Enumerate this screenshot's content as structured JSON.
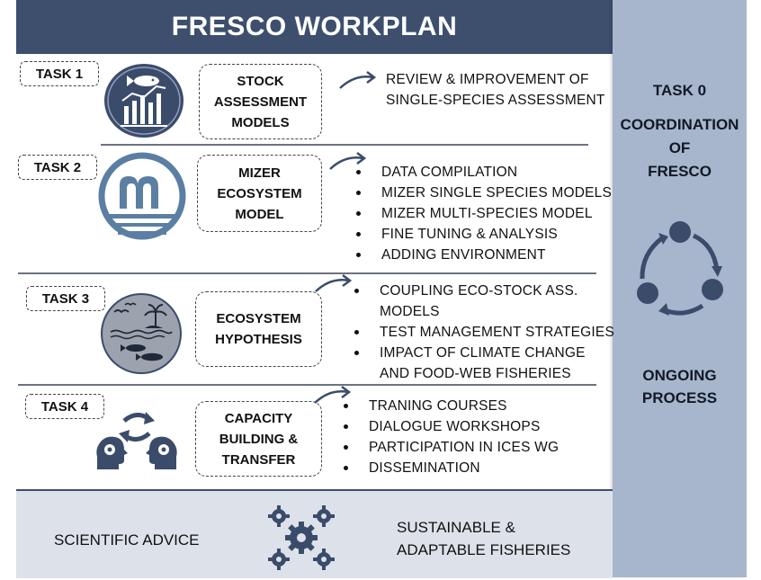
{
  "title": "FRESCO WORKPLAN",
  "task0": {
    "label": "TASK 0",
    "coordination_lines": [
      "COORDINATION",
      "OF",
      "FRESCO"
    ],
    "process_lines": [
      "ONGOING",
      "PROCESS"
    ]
  },
  "tasks": [
    {
      "tag": "TASK 1",
      "icon": "fish-bar-chart-icon",
      "box_lines": [
        "STOCK",
        "ASSESSMENT",
        "MODELS"
      ],
      "items": [
        "REVIEW & IMPROVEMENT OF",
        "SINGLE-SPECIES ASSESSMENT"
      ]
    },
    {
      "tag": "TASK 2",
      "icon": "mizer-logo-icon",
      "box_lines": [
        "MIZER",
        "ECOSYSTEM",
        "MODEL"
      ],
      "items": [
        "DATA COMPILATION",
        "MIZER SINGLE SPECIES MODELS",
        "MIZER MULTI-SPECIES MODEL",
        "FINE TUNING & ANALYSIS",
        "ADDING ENVIRONMENT"
      ]
    },
    {
      "tag": "TASK 3",
      "icon": "ecosystem-island-icon",
      "box_lines": [
        "ECOSYSTEM",
        "HYPOTHESIS"
      ],
      "items": [
        "COUPLING ECO-STOCK ASS.",
        "MODELS",
        "TEST MANAGEMENT STRATEGIES",
        "IMPACT OF CLIMATE CHANGE",
        "AND FOOD-WEB FISHERIES"
      ]
    },
    {
      "tag": "TASK 4",
      "icon": "knowledge-exchange-icon",
      "box_lines": [
        "CAPACITY",
        "BUILDING &",
        "TRANSFER"
      ],
      "items": [
        "TRANING COURSES",
        "DIALOGUE WORKSHOPS",
        "PARTICIPATION IN ICES WG",
        "DISSEMINATION"
      ]
    }
  ],
  "bottom": {
    "left": "SCIENTIFIC ADVICE",
    "right_lines": [
      "SUSTAINABLE &",
      "ADAPTABLE FISHERIES"
    ],
    "icon": "gears-icon"
  },
  "colors": {
    "header_bg": "#3e4f6e",
    "column_bg": "#a7b6cd",
    "bottom_bg": "#dde2ea",
    "icon_dark": "#3b4c6b",
    "mizer_blue": "#5b7fa3"
  }
}
